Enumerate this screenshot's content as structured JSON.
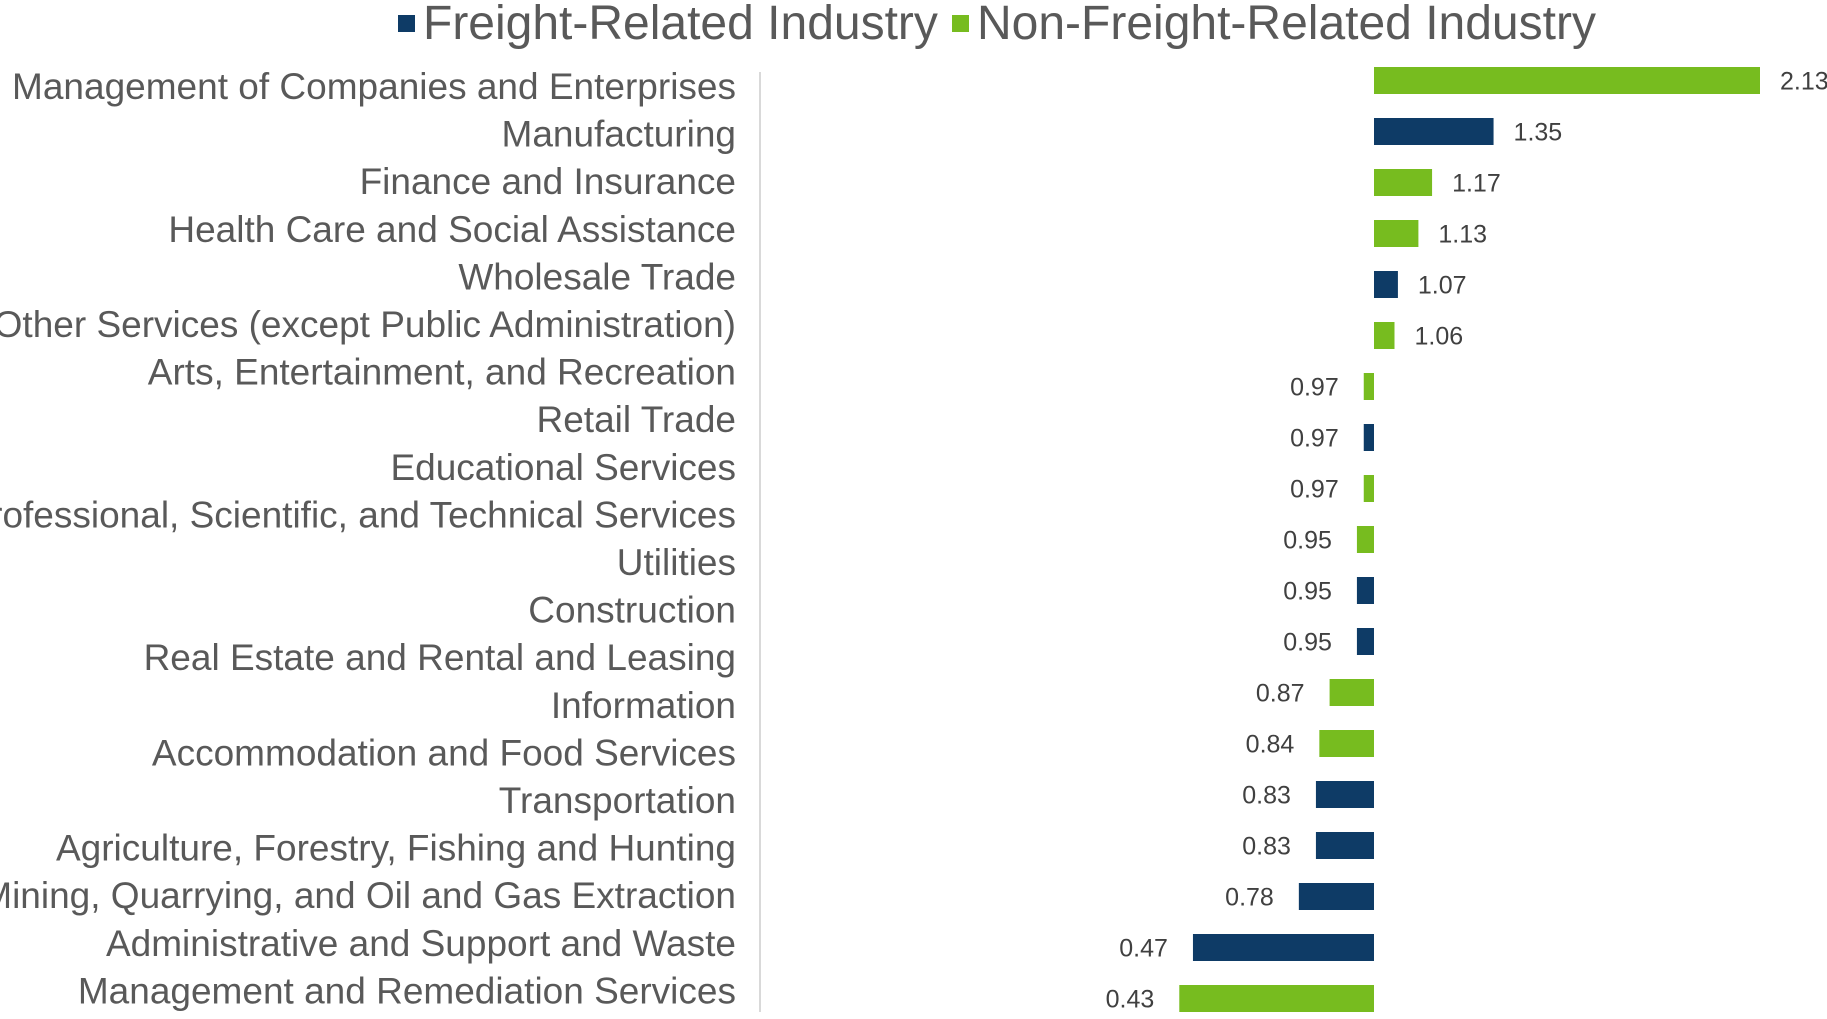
{
  "chart_data": {
    "type": "bar",
    "orientation": "horizontal",
    "baseline": 1.0,
    "xlim": [
      0.4,
      2.2
    ],
    "title": "",
    "xlabel": "",
    "ylabel": "",
    "grid": false,
    "legend_position": "top",
    "series": [
      {
        "name": "Freight-Related Industry",
        "color": "#0e3b66"
      },
      {
        "name": "Non-Freight-Related Industry",
        "color": "#77bc1f"
      }
    ],
    "categories": [
      {
        "label": "Management of Companies and Enterprises",
        "value": 2.13,
        "value_label": "2.13",
        "series": 1
      },
      {
        "label": "Manufacturing",
        "value": 1.35,
        "value_label": "1.35",
        "series": 0
      },
      {
        "label": "Finance and Insurance",
        "value": 1.17,
        "value_label": "1.17",
        "series": 1
      },
      {
        "label": "Health Care and Social Assistance",
        "value": 1.13,
        "value_label": "1.13",
        "series": 1
      },
      {
        "label": "Wholesale Trade",
        "value": 1.07,
        "value_label": "1.07",
        "series": 0
      },
      {
        "label": "Other Services (except Public Administration)",
        "value": 1.06,
        "value_label": "1.06",
        "series": 1
      },
      {
        "label": "Arts, Entertainment, and Recreation",
        "value": 0.97,
        "value_label": "0.97",
        "series": 1
      },
      {
        "label": "Retail Trade",
        "value": 0.97,
        "value_label": "0.97",
        "series": 0
      },
      {
        "label": "Educational Services",
        "value": 0.97,
        "value_label": "0.97",
        "series": 1
      },
      {
        "label": "Professional, Scientific, and Technical Services",
        "value": 0.95,
        "value_label": "0.95",
        "series": 1
      },
      {
        "label": "Utilities",
        "value": 0.95,
        "value_label": "0.95",
        "series": 0
      },
      {
        "label": "Construction",
        "value": 0.95,
        "value_label": "0.95",
        "series": 0
      },
      {
        "label": "Real Estate and Rental and Leasing",
        "value": 0.87,
        "value_label": "0.87",
        "series": 1
      },
      {
        "label": "Information",
        "value": 0.84,
        "value_label": "0.84",
        "series": 1
      },
      {
        "label": "Accommodation and Food Services",
        "value": 0.83,
        "value_label": "0.83",
        "series": 0
      },
      {
        "label": "Transportation",
        "value": 0.83,
        "value_label": "0.83",
        "series": 0
      },
      {
        "label": "Agriculture, Forestry, Fishing and Hunting",
        "value": 0.78,
        "value_label": "0.78",
        "series": 0
      },
      {
        "label": "Mining, Quarrying, and Oil and Gas Extraction",
        "value": 0.47,
        "value_label": "0.47",
        "series": 0
      },
      {
        "label": "Administrative and Support and Waste",
        "value": null,
        "value_label": null,
        "series": null
      },
      {
        "label": "Management and Remediation Services",
        "value": 0.43,
        "value_label": "0.43",
        "series": 1
      }
    ]
  }
}
